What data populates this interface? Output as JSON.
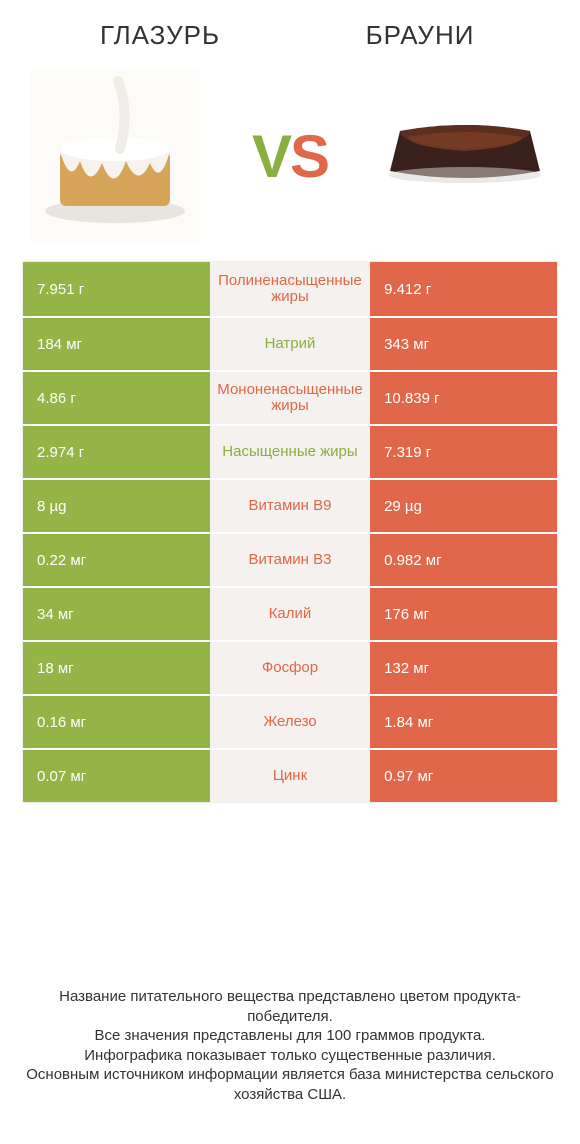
{
  "colors": {
    "left_bg": "#94b447",
    "right_bg": "#e0674a",
    "mid_bg": "#f5f1ee",
    "left_text": "#8aae3f",
    "right_text": "#e0674a",
    "cell_text": "#ffffff",
    "vs_v": "#8aae3f",
    "vs_s": "#e0674a"
  },
  "header": {
    "left_title": "ГЛАЗУРЬ",
    "right_title": "БРАУНИ",
    "vs_v": "V",
    "vs_s": "S"
  },
  "rows": [
    {
      "left": "7.951 г",
      "label": "Полиненасыщенные жиры",
      "right": "9.412 г",
      "winner": "right"
    },
    {
      "left": "184 мг",
      "label": "Натрий",
      "right": "343 мг",
      "winner": "left"
    },
    {
      "left": "4.86 г",
      "label": "Мононенасыщенные жиры",
      "right": "10.839 г",
      "winner": "right"
    },
    {
      "left": "2.974 г",
      "label": "Насыщенные жиры",
      "right": "7.319 г",
      "winner": "left"
    },
    {
      "left": "8 µg",
      "label": "Витамин B9",
      "right": "29 µg",
      "winner": "right"
    },
    {
      "left": "0.22 мг",
      "label": "Витамин B3",
      "right": "0.982 мг",
      "winner": "right"
    },
    {
      "left": "34 мг",
      "label": "Калий",
      "right": "176 мг",
      "winner": "right"
    },
    {
      "left": "18 мг",
      "label": "Фосфор",
      "right": "132 мг",
      "winner": "right"
    },
    {
      "left": "0.16 мг",
      "label": "Железо",
      "right": "1.84 мг",
      "winner": "right"
    },
    {
      "left": "0.07 мг",
      "label": "Цинк",
      "right": "0.97 мг",
      "winner": "right"
    }
  ],
  "footer": {
    "line1": "Название питательного вещества представлено цветом продукта-победителя.",
    "line2": "Все значения представлены для 100 граммов продукта.",
    "line3": "Инфографика показывает только существенные различия.",
    "line4": "Основным источником информации является база министерства сельского хозяйства США."
  }
}
